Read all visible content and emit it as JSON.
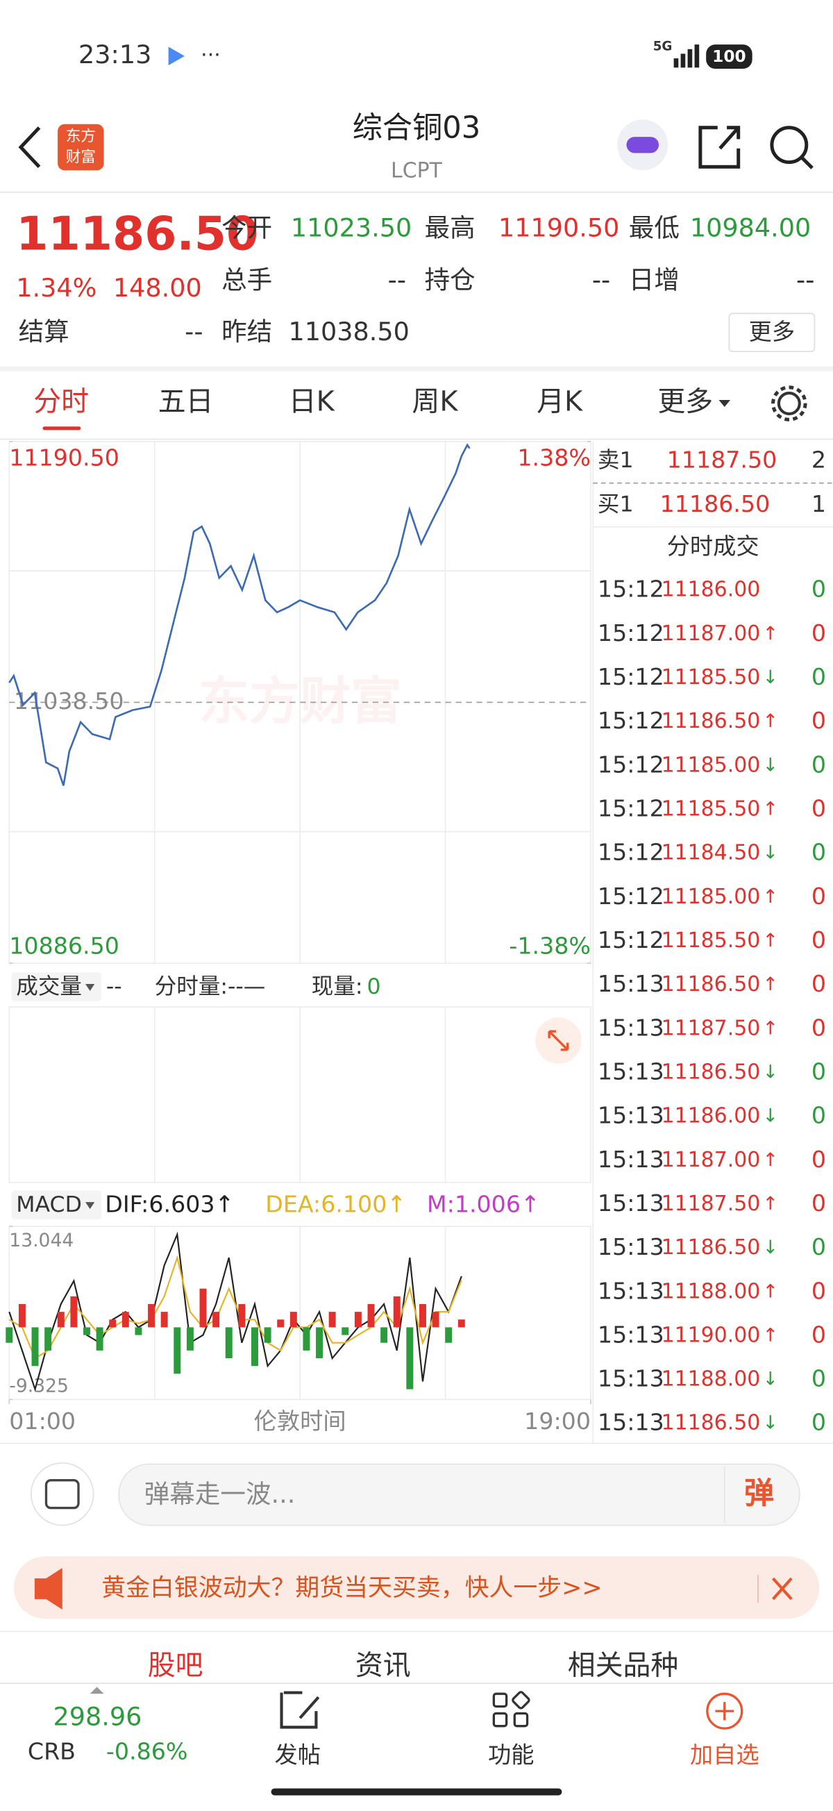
{
  "status": {
    "time": "23:13",
    "network": "5G",
    "battery": "100"
  },
  "header": {
    "logo": [
      "东方",
      "财富"
    ],
    "title": "综合铜03",
    "subtitle": "LCPT"
  },
  "quote": {
    "price": "11186.50",
    "change_pct": "1.34%",
    "change": "148.00",
    "fields": [
      {
        "label": "今开",
        "value": "11023.50"
      },
      {
        "label": "最高",
        "value": "11190.50"
      },
      {
        "label": "最低",
        "value": "10984.00"
      },
      {
        "label": "总手",
        "value": "--"
      },
      {
        "label": "持仓",
        "value": "--"
      },
      {
        "label": "日增",
        "value": "--"
      },
      {
        "label": "结算",
        "value": "--"
      },
      {
        "label": "昨结",
        "value": "11038.50"
      }
    ],
    "more": "更多"
  },
  "tabs": [
    "分时",
    "五日",
    "日K",
    "周K",
    "月K",
    "更多"
  ],
  "watermark": "东方财富",
  "chart_data": [
    {
      "type": "line",
      "color": "#3d6bb3",
      "x_label": "伦敦时间",
      "x": [
        1.0,
        1.14,
        1.43,
        1.79,
        2.14,
        2.5,
        2.68,
        2.86,
        3.21,
        3.57,
        4.11,
        4.29,
        4.82,
        5.36,
        5.71,
        6.07,
        6.43,
        6.71,
        6.96,
        7.21,
        7.5,
        7.86,
        8.21,
        8.57,
        8.93,
        9.29,
        9.64,
        10.0,
        10.54,
        11.07,
        11.43,
        11.79,
        12.32,
        12.68,
        13.04,
        13.39,
        13.75,
        14.11,
        14.46,
        14.82,
        15.0,
        15.18,
        15.25
      ],
      "values": [
        11050,
        11054,
        11037,
        11044,
        11003.5,
        11000,
        10990,
        11010,
        11027,
        11020,
        11017,
        11030,
        11034,
        11036,
        11057,
        11084,
        11111,
        11138,
        11141,
        11131,
        11111,
        11118,
        11104,
        11124,
        11098,
        11091,
        11094,
        11098,
        11094,
        11091,
        11081,
        11091,
        11098,
        11108,
        11124,
        11151,
        11131,
        11145,
        11158,
        11172,
        11182,
        11188.5,
        11186.5
      ],
      "xlim": [
        1,
        19
      ],
      "xticks": [
        {
          "value": 1,
          "label": "01:00"
        },
        {
          "value": 19,
          "label": "19:00"
        }
      ],
      "ylim": [
        10886.5,
        11190.5
      ],
      "yticks": [
        {
          "value": 11190.5,
          "label": "11190.50"
        },
        {
          "value": 10886.5,
          "label": "10886.50"
        }
      ],
      "y2lim": [
        -1.38,
        1.38
      ],
      "y2ticks": [
        {
          "value": 1.38,
          "label": "1.38%"
        },
        {
          "value": -1.38,
          "label": "-1.38%"
        }
      ],
      "reference": {
        "value": 11038.5,
        "label": "11038.50"
      }
    },
    {
      "type": "macd",
      "indicator": "MACD",
      "x": [
        1,
        1.4,
        1.8,
        2.2,
        2.6,
        3,
        3.4,
        3.8,
        4.2,
        4.6,
        5,
        5.4,
        5.8,
        6.2,
        6.6,
        7,
        7.4,
        7.8,
        8.2,
        8.6,
        9,
        9.4,
        9.8,
        10.2,
        10.6,
        11,
        11.4,
        11.8,
        12.2,
        12.6,
        13,
        13.4,
        13.8,
        14.2,
        14.6,
        15
      ],
      "xlim": [
        1,
        19
      ],
      "ylim": [
        -9.325,
        13.044
      ],
      "yticks": [
        13.044,
        -9.325
      ],
      "series": [
        {
          "name": "DIF:6.603↑",
          "color": "#222222",
          "values": [
            2,
            -3,
            -8,
            -2,
            3,
            6,
            -1,
            -2,
            1,
            2,
            0,
            1,
            8,
            12,
            -2,
            -1,
            3,
            9,
            -2,
            3,
            -5,
            -3,
            1,
            -1,
            2,
            -4,
            -2,
            0,
            1,
            3,
            -3,
            9,
            -7,
            5,
            2,
            6.603
          ]
        },
        {
          "name": "DEA:6.100↑",
          "color": "#e6b422",
          "values": [
            1,
            0,
            -4,
            -3,
            0,
            3,
            1,
            -1,
            0,
            1,
            0.5,
            1,
            4,
            9,
            2,
            0,
            1,
            5,
            1,
            1,
            -2,
            -3,
            0,
            0,
            1,
            -2,
            -2,
            -1,
            0,
            2,
            0,
            5,
            -2,
            2,
            2,
            6.1
          ]
        },
        {
          "name": "M:1.006↑",
          "color": "#c23cc8",
          "bars": true,
          "up_color": "#e2302c",
          "down_color": "#2c9b3c",
          "values": [
            -2,
            3,
            -5,
            -3,
            2,
            4,
            -1,
            -3,
            1,
            2,
            -1,
            3,
            2,
            -6,
            -3,
            5,
            2,
            -4,
            3,
            -5,
            -2,
            1,
            2,
            -3,
            -4,
            2,
            -1,
            2,
            3,
            -2,
            4,
            -8,
            3,
            2,
            -2,
            1.006
          ]
        }
      ]
    }
  ],
  "volume": {
    "selector": "成交量",
    "value": "--",
    "intraday": "分时量:--—",
    "current_label": "现量:",
    "current": "0"
  },
  "book": {
    "sell": {
      "label": "卖1",
      "price": "11187.50",
      "qty": "2"
    },
    "buy": {
      "label": "买1",
      "price": "11186.50",
      "qty": "1"
    },
    "title": "分时成交",
    "trades": [
      {
        "time": "15:12",
        "price": "11186.00",
        "arrow": "",
        "volume": "0",
        "dir": "flat"
      },
      {
        "time": "15:12",
        "price": "11187.00",
        "arrow": "↑",
        "volume": "0",
        "dir": "up"
      },
      {
        "time": "15:12",
        "price": "11185.50",
        "arrow": "↓",
        "volume": "0",
        "dir": "down"
      },
      {
        "time": "15:12",
        "price": "11186.50",
        "arrow": "↑",
        "volume": "0",
        "dir": "up"
      },
      {
        "time": "15:12",
        "price": "11185.00",
        "arrow": "↓",
        "volume": "0",
        "dir": "down"
      },
      {
        "time": "15:12",
        "price": "11185.50",
        "arrow": "↑",
        "volume": "0",
        "dir": "up"
      },
      {
        "time": "15:12",
        "price": "11184.50",
        "arrow": "↓",
        "volume": "0",
        "dir": "down"
      },
      {
        "time": "15:12",
        "price": "11185.00",
        "arrow": "↑",
        "volume": "0",
        "dir": "up"
      },
      {
        "time": "15:12",
        "price": "11185.50",
        "arrow": "↑",
        "volume": "0",
        "dir": "up"
      },
      {
        "time": "15:13",
        "price": "11186.50",
        "arrow": "↑",
        "volume": "0",
        "dir": "up"
      },
      {
        "time": "15:13",
        "price": "11187.50",
        "arrow": "↑",
        "volume": "0",
        "dir": "up"
      },
      {
        "time": "15:13",
        "price": "11186.50",
        "arrow": "↓",
        "volume": "0",
        "dir": "down"
      },
      {
        "time": "15:13",
        "price": "11186.00",
        "arrow": "↓",
        "volume": "0",
        "dir": "down"
      },
      {
        "time": "15:13",
        "price": "11187.00",
        "arrow": "↑",
        "volume": "0",
        "dir": "up"
      },
      {
        "time": "15:13",
        "price": "11187.50",
        "arrow": "↑",
        "volume": "0",
        "dir": "up"
      },
      {
        "time": "15:13",
        "price": "11186.50",
        "arrow": "↓",
        "volume": "0",
        "dir": "down"
      },
      {
        "time": "15:13",
        "price": "11188.00",
        "arrow": "↑",
        "volume": "0",
        "dir": "up"
      },
      {
        "time": "15:13",
        "price": "11190.00",
        "arrow": "↑",
        "volume": "0",
        "dir": "up"
      },
      {
        "time": "15:13",
        "price": "11188.00",
        "arrow": "↓",
        "volume": "0",
        "dir": "down"
      },
      {
        "time": "15:13",
        "price": "11186.50",
        "arrow": "↓",
        "volume": "0",
        "dir": "down"
      }
    ]
  },
  "comment": {
    "placeholder": "弹幕走一波...",
    "button": "弹"
  },
  "banner": {
    "text": "黄金白银波动大？期货当天买卖，快人一步>>"
  },
  "section_tabs": [
    "股吧",
    "资讯",
    "相关品种"
  ],
  "bottom_nav": {
    "index_value": "298.96",
    "index_name": "CRB",
    "index_change": "-0.86%",
    "items": [
      "发帖",
      "功能",
      "加自选"
    ]
  }
}
